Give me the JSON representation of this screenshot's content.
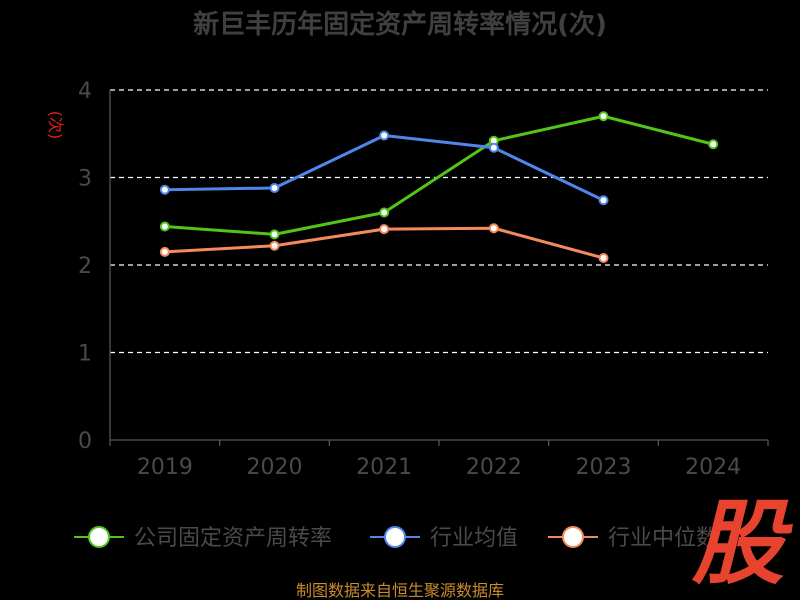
{
  "chart_data": {
    "type": "line",
    "title": "新巨丰历年固定资产周转率情况(次)",
    "ylabel": "(次)",
    "categories": [
      "2019",
      "2020",
      "2021",
      "2022",
      "2023",
      "2024"
    ],
    "ylim": [
      0,
      4
    ],
    "yticks": [
      "0",
      "1",
      "2",
      "3",
      "4"
    ],
    "grid": "horizontal dashed",
    "series": [
      {
        "name": "公司固定资产周转率",
        "color": "#52c41a",
        "values": [
          2.44,
          2.35,
          2.6,
          3.42,
          3.7,
          3.38
        ]
      },
      {
        "name": "行业均值",
        "color": "#4f86e8",
        "values": [
          2.86,
          2.88,
          3.48,
          3.34,
          2.74,
          null
        ]
      },
      {
        "name": "行业中位数",
        "color": "#f58a5c",
        "values": [
          2.15,
          2.22,
          2.41,
          2.42,
          2.08,
          null
        ]
      }
    ],
    "legend_position": "bottom",
    "source": "制图数据来自恒生聚源数据库",
    "watermark": "股"
  }
}
